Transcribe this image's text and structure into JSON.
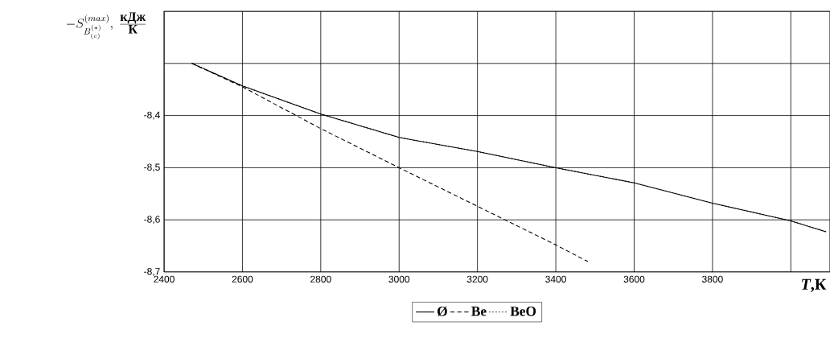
{
  "chart_data": {
    "type": "line",
    "xlabel": "*T*,К",
    "ylabel": "-S^{(max)}_{B^{(*)}_{(c)}},\\ \\frac{\\mbox{кДж}}{\\mbox{К}}",
    "xlim": [
      2400,
      4100
    ],
    "ylim": [
      -8.7,
      -8.2
    ],
    "xticks": [
      2400,
      2600,
      2800,
      3000,
      3200,
      3400,
      3600,
      3800,
      {
        "value": 4000,
        "label": null
      }
    ],
    "yticks": [
      {
        "value": -8.7,
        "label": "-8,7"
      },
      {
        "value": -8.6,
        "label": "-8,6"
      },
      {
        "value": -8.5,
        "label": "-8,5"
      },
      {
        "value": -8.4,
        "label": "-8,4"
      },
      {
        "value": -8.3,
        "label": null
      },
      {
        "value": -8.2,
        "label": null
      }
    ],
    "grid": true,
    "legend": "bottom",
    "marker": "none",
    "series": [
      {
        "name": "Ø",
        "color": "#000000",
        "line_style": "solid",
        "x": [
          2471,
          2600,
          2800,
          3000,
          3200,
          3400,
          3600,
          3800,
          4000,
          4090
        ],
        "values": [
          -8.3,
          -8.343,
          -8.397,
          -8.442,
          -8.469,
          -8.5,
          -8.529,
          -8.568,
          -8.602,
          -8.623
        ]
      },
      {
        "name": "Be",
        "color": "#000000",
        "line_style": "dashed",
        "x": [
          2471,
          2600,
          2800,
          3000,
          3200,
          3400,
          3482
        ],
        "values": [
          -8.3,
          -8.345,
          -8.425,
          -8.5,
          -8.574,
          -8.648,
          -8.68
        ]
      },
      {
        "name": "BeO",
        "color": "#000000",
        "line_style": "dotted",
        "x": [
          2471,
          2600,
          2800,
          3000,
          3200,
          3400,
          3600,
          3800,
          4000,
          4090
        ],
        "values": [
          -8.3,
          -8.343,
          -8.397,
          -8.442,
          -8.469,
          -8.5,
          -8.529,
          -8.568,
          -8.602,
          -8.623
        ]
      }
    ]
  }
}
